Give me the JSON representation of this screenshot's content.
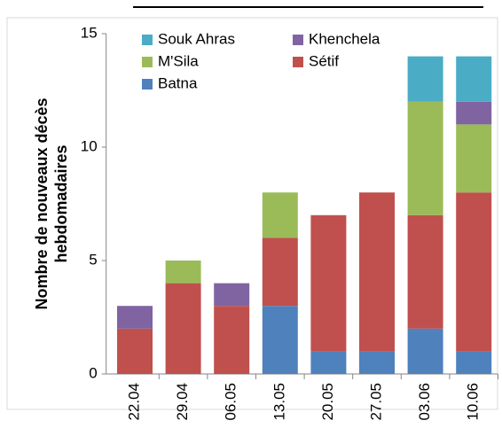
{
  "chart_data": {
    "type": "stacked_bar",
    "ylabel": [
      "Nombre de nouveaux décès",
      "hebdomadaires"
    ],
    "categories": [
      "22.04",
      "29.04",
      "06.05",
      "13.05",
      "20.05",
      "27.05",
      "03.06",
      "10.06"
    ],
    "series": [
      {
        "name": "Batna",
        "color": "#4f81bd",
        "values": [
          0,
          0,
          0,
          3,
          1,
          1,
          2,
          1
        ]
      },
      {
        "name": "Sétif",
        "color": "#c0504d",
        "values": [
          2,
          4,
          3,
          3,
          6,
          7,
          5,
          7
        ]
      },
      {
        "name": "M'Sila",
        "color": "#9bbb59",
        "values": [
          0,
          1,
          0,
          2,
          0,
          0,
          5,
          3
        ]
      },
      {
        "name": "Khenchela",
        "color": "#8064a2",
        "values": [
          1,
          0,
          1,
          0,
          0,
          0,
          0,
          1
        ]
      },
      {
        "name": "Souk Ahras",
        "color": "#4bacc6",
        "values": [
          0,
          0,
          0,
          0,
          0,
          0,
          2,
          2
        ]
      }
    ],
    "ylim": [
      0,
      15
    ],
    "yticks": [
      0,
      5,
      10,
      15
    ],
    "grid": false
  }
}
